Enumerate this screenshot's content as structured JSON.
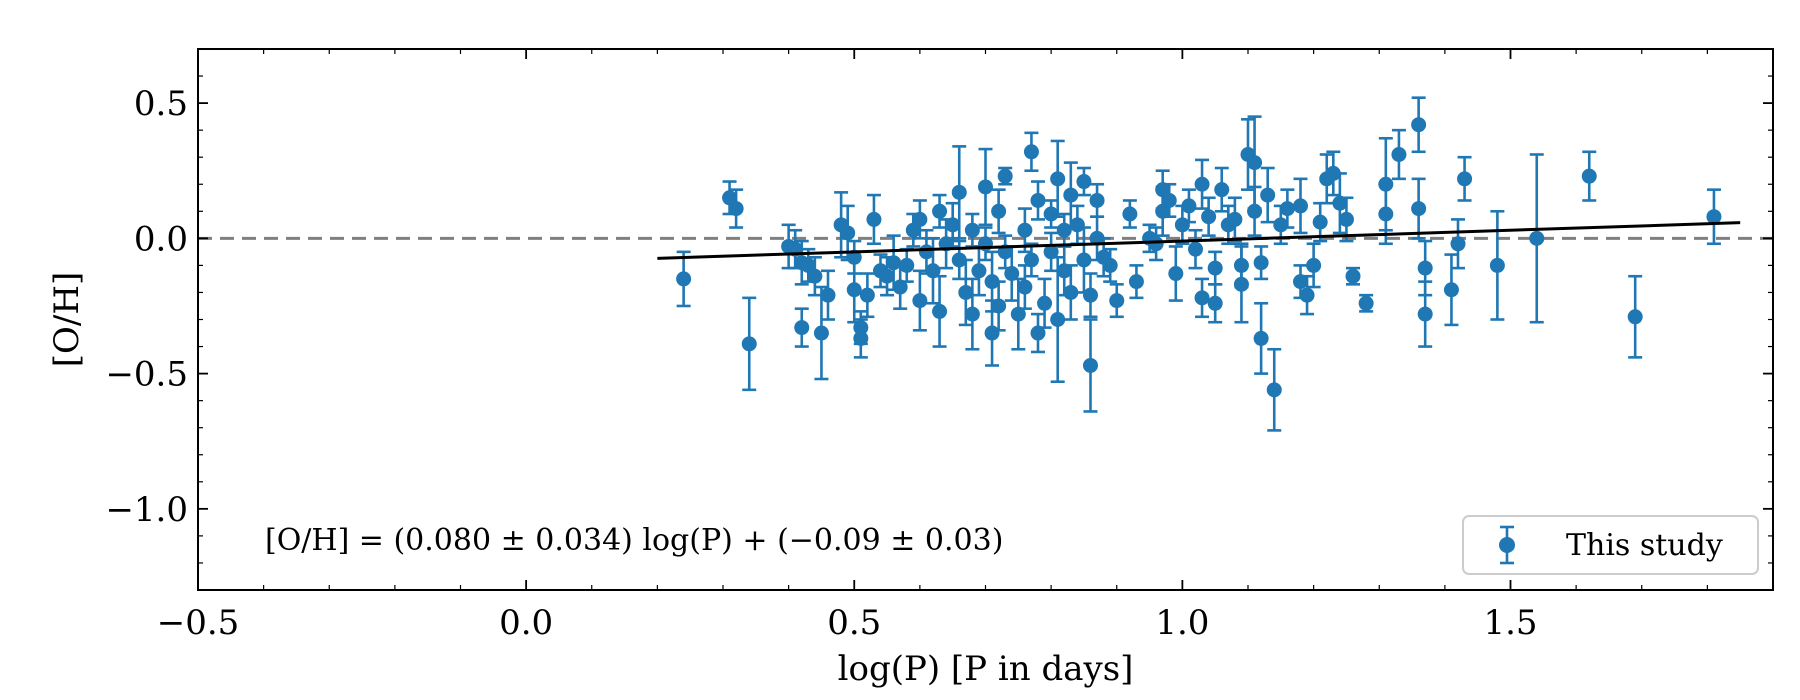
{
  "chart_data": {
    "type": "scatter",
    "title": "",
    "xlabel": "log(P) [P in days]",
    "ylabel": "[O/H]",
    "xlim": [
      -0.5,
      1.9
    ],
    "ylim": [
      -1.3,
      0.7
    ],
    "xticks": [
      -0.5,
      0.0,
      0.5,
      1.0,
      1.5
    ],
    "xtick_labels": [
      "−0.5",
      "0.0",
      "0.5",
      "1.0",
      "1.5"
    ],
    "yticks": [
      0.5,
      0.0,
      -0.5,
      -1.0
    ],
    "ytick_labels": [
      "0.5",
      "0.0",
      "−0.5",
      "−1.0"
    ],
    "grid": false,
    "legend": {
      "location": "lower-right",
      "entries": [
        "This study"
      ]
    },
    "colors": {
      "points": "#1f77b4",
      "fit": "#000000",
      "reference": "#808080"
    },
    "reference_line": {
      "y": 0.0,
      "style": "dashed"
    },
    "fit_line": {
      "slope": 0.08,
      "intercept": -0.09,
      "x_range": [
        0.2,
        1.85
      ]
    },
    "annotation": "[O/H] = (0.080 ± 0.034) log(P) + (−0.09 ± 0.03)",
    "series": [
      {
        "name": "This study",
        "points": [
          [
            0.24,
            -0.15,
            0.1
          ],
          [
            0.31,
            0.15,
            0.06
          ],
          [
            0.32,
            0.11,
            0.07
          ],
          [
            0.34,
            -0.39,
            0.17
          ],
          [
            0.4,
            -0.03,
            0.08
          ],
          [
            0.41,
            -0.04,
            0.07
          ],
          [
            0.42,
            -0.33,
            0.07
          ],
          [
            0.42,
            -0.09,
            0.08
          ],
          [
            0.43,
            -0.1,
            0.06
          ],
          [
            0.44,
            -0.14,
            0.07
          ],
          [
            0.45,
            -0.35,
            0.17
          ],
          [
            0.46,
            -0.21,
            0.09
          ],
          [
            0.48,
            0.05,
            0.12
          ],
          [
            0.49,
            0.02,
            0.1
          ],
          [
            0.5,
            -0.07,
            0.06
          ],
          [
            0.5,
            -0.19,
            0.12
          ],
          [
            0.51,
            -0.33,
            0.06
          ],
          [
            0.51,
            -0.37,
            0.07
          ],
          [
            0.52,
            -0.21,
            0.08
          ],
          [
            0.53,
            0.07,
            0.09
          ],
          [
            0.54,
            -0.12,
            0.06
          ],
          [
            0.55,
            -0.14,
            0.07
          ],
          [
            0.56,
            -0.09,
            0.1
          ],
          [
            0.57,
            -0.18,
            0.08
          ],
          [
            0.58,
            -0.1,
            0.06
          ],
          [
            0.59,
            0.03,
            0.06
          ],
          [
            0.6,
            0.07,
            0.07
          ],
          [
            0.6,
            -0.23,
            0.11
          ],
          [
            0.61,
            -0.05,
            0.08
          ],
          [
            0.62,
            -0.12,
            0.12
          ],
          [
            0.63,
            -0.27,
            0.13
          ],
          [
            0.63,
            0.1,
            0.06
          ],
          [
            0.64,
            -0.02,
            0.09
          ],
          [
            0.65,
            0.05,
            0.08
          ],
          [
            0.66,
            -0.08,
            0.07
          ],
          [
            0.66,
            0.17,
            0.17
          ],
          [
            0.67,
            -0.2,
            0.12
          ],
          [
            0.68,
            -0.28,
            0.13
          ],
          [
            0.68,
            0.03,
            0.06
          ],
          [
            0.69,
            -0.12,
            0.09
          ],
          [
            0.7,
            0.19,
            0.14
          ],
          [
            0.7,
            -0.02,
            0.06
          ],
          [
            0.71,
            -0.35,
            0.12
          ],
          [
            0.71,
            -0.16,
            0.11
          ],
          [
            0.72,
            0.1,
            0.08
          ],
          [
            0.72,
            -0.25,
            0.09
          ],
          [
            0.73,
            0.23,
            0.03
          ],
          [
            0.73,
            -0.05,
            0.06
          ],
          [
            0.74,
            -0.13,
            0.1
          ],
          [
            0.75,
            -0.28,
            0.13
          ],
          [
            0.76,
            0.03,
            0.08
          ],
          [
            0.76,
            -0.18,
            0.08
          ],
          [
            0.77,
            0.32,
            0.07
          ],
          [
            0.77,
            -0.08,
            0.06
          ],
          [
            0.78,
            -0.35,
            0.07
          ],
          [
            0.78,
            0.14,
            0.07
          ],
          [
            0.79,
            -0.24,
            0.09
          ],
          [
            0.8,
            -0.05,
            0.07
          ],
          [
            0.8,
            0.09,
            0.05
          ],
          [
            0.81,
            -0.3,
            0.23
          ],
          [
            0.81,
            0.22,
            0.14
          ],
          [
            0.82,
            -0.12,
            0.09
          ],
          [
            0.82,
            0.03,
            0.06
          ],
          [
            0.83,
            0.16,
            0.12
          ],
          [
            0.83,
            -0.2,
            0.1
          ],
          [
            0.84,
            0.05,
            0.07
          ],
          [
            0.85,
            -0.08,
            0.12
          ],
          [
            0.85,
            0.21,
            0.05
          ],
          [
            0.86,
            -0.47,
            0.17
          ],
          [
            0.86,
            -0.21,
            0.08
          ],
          [
            0.87,
            0.14,
            0.06
          ],
          [
            0.87,
            0.0,
            0.08
          ],
          [
            0.88,
            -0.07,
            0.07
          ],
          [
            0.89,
            -0.1,
            0.06
          ],
          [
            0.9,
            -0.23,
            0.06
          ],
          [
            0.92,
            0.09,
            0.05
          ],
          [
            0.93,
            -0.16,
            0.06
          ],
          [
            0.95,
            0.0,
            0.05
          ],
          [
            0.96,
            -0.02,
            0.06
          ],
          [
            0.97,
            0.1,
            0.09
          ],
          [
            0.97,
            0.18,
            0.07
          ],
          [
            0.98,
            0.14,
            0.06
          ],
          [
            0.99,
            -0.13,
            0.1
          ],
          [
            1.0,
            0.05,
            0.07
          ],
          [
            1.01,
            0.12,
            0.06
          ],
          [
            1.02,
            -0.04,
            0.07
          ],
          [
            1.03,
            0.2,
            0.09
          ],
          [
            1.03,
            -0.22,
            0.07
          ],
          [
            1.04,
            0.08,
            0.07
          ],
          [
            1.05,
            -0.11,
            0.06
          ],
          [
            1.05,
            -0.24,
            0.07
          ],
          [
            1.06,
            0.18,
            0.08
          ],
          [
            1.07,
            0.05,
            0.07
          ],
          [
            1.08,
            0.07,
            0.08
          ],
          [
            1.09,
            -0.1,
            0.08
          ],
          [
            1.09,
            -0.17,
            0.14
          ],
          [
            1.1,
            0.31,
            0.13
          ],
          [
            1.11,
            0.28,
            0.17
          ],
          [
            1.11,
            0.1,
            0.09
          ],
          [
            1.12,
            -0.37,
            0.13
          ],
          [
            1.12,
            -0.09,
            0.06
          ],
          [
            1.13,
            0.16,
            0.1
          ],
          [
            1.14,
            -0.56,
            0.15
          ],
          [
            1.15,
            0.05,
            0.07
          ],
          [
            1.16,
            0.11,
            0.07
          ],
          [
            1.18,
            0.12,
            0.1
          ],
          [
            1.18,
            -0.16,
            0.06
          ],
          [
            1.19,
            -0.21,
            0.07
          ],
          [
            1.2,
            -0.1,
            0.08
          ],
          [
            1.21,
            0.06,
            0.07
          ],
          [
            1.22,
            0.22,
            0.09
          ],
          [
            1.23,
            0.24,
            0.08
          ],
          [
            1.24,
            0.13,
            0.11
          ],
          [
            1.25,
            0.07,
            0.08
          ],
          [
            1.26,
            -0.14,
            0.03
          ],
          [
            1.28,
            -0.24,
            0.03
          ],
          [
            1.31,
            0.2,
            0.17
          ],
          [
            1.31,
            0.09,
            0.11
          ],
          [
            1.33,
            0.31,
            0.09
          ],
          [
            1.36,
            0.42,
            0.1
          ],
          [
            1.36,
            0.11,
            0.11
          ],
          [
            1.37,
            -0.28,
            0.12
          ],
          [
            1.37,
            -0.11,
            0.1
          ],
          [
            1.41,
            -0.19,
            0.13
          ],
          [
            1.42,
            -0.02,
            0.09
          ],
          [
            1.43,
            0.22,
            0.08
          ],
          [
            1.48,
            -0.1,
            0.2
          ],
          [
            1.54,
            0.0,
            0.31
          ],
          [
            1.62,
            0.23,
            0.09
          ],
          [
            1.69,
            -0.29,
            0.15
          ],
          [
            1.81,
            0.08,
            0.1
          ]
        ]
      }
    ]
  }
}
